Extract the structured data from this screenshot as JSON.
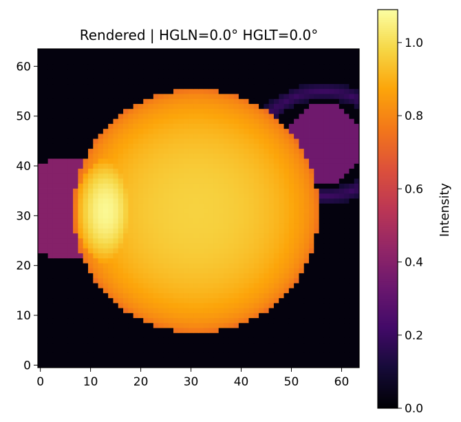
{
  "chart_data": {
    "type": "heatmap",
    "title": "Rendered | HGLN=0.0° HGLT=0.0°",
    "xlabel": "",
    "ylabel": "",
    "colorbar_label": "Intensity",
    "colormap": "inferno",
    "grid": false,
    "grid_size": [
      64,
      64
    ],
    "origin": "lower",
    "xlim": [
      -0.5,
      63.5
    ],
    "ylim": [
      -0.5,
      63.5
    ],
    "x_ticks": [
      0,
      10,
      20,
      30,
      40,
      50,
      60
    ],
    "y_ticks": [
      0,
      10,
      20,
      30,
      40,
      50,
      60
    ],
    "x_tick_labels": [
      "0",
      "10",
      "20",
      "30",
      "40",
      "50",
      "60"
    ],
    "y_tick_labels": [
      "0",
      "10",
      "20",
      "30",
      "40",
      "50",
      "60"
    ],
    "color_range": [
      0.0,
      1.09
    ],
    "colorbar_ticks": [
      0.0,
      0.2,
      0.4,
      0.6,
      0.8,
      1.0
    ],
    "colorbar_tick_labels": [
      "0.0",
      "0.2",
      "0.4",
      "0.6",
      "0.8",
      "1.0"
    ],
    "background_intensity": 0.02,
    "features": [
      {
        "shape": "disk",
        "center": [
          31,
          31
        ],
        "radius": 24.5,
        "peak": 0.97,
        "limb": 0.72
      },
      {
        "shape": "ellipse",
        "center": [
          13,
          31
        ],
        "radii": [
          5.8,
          10.5
        ],
        "peak": 1.07,
        "edge": 0.86
      },
      {
        "shape": "ellipse",
        "center": [
          5.5,
          31.5
        ],
        "radii": [
          12,
          10
        ],
        "intensity": 0.4
      },
      {
        "shape": "ellipse",
        "center": [
          56.5,
          44.5
        ],
        "radii": [
          7.5,
          8
        ],
        "intensity": 0.34
      },
      {
        "shape": "ring",
        "center": [
          56.5,
          44.5
        ],
        "radii": [
          13,
          10.5
        ],
        "width": 1.6,
        "intensity": 0.2
      },
      {
        "shape": "bright-arc",
        "center": [
          47,
          39
        ],
        "radii": [
          3.5,
          6
        ],
        "intensity": 0.74
      }
    ]
  }
}
